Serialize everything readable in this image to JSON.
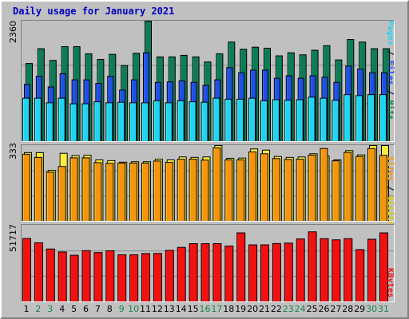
{
  "title": "Daily usage for January 2021",
  "colors": {
    "hits": "#0f7b54",
    "files": "#1f4fe3",
    "pages": "#22d3f4",
    "visits": "#f9ef3a",
    "sites": "#f4940f",
    "kbytes": "#f21111",
    "weekend_tick": "#18874b",
    "weekday_tick": "#000000"
  },
  "panels": {
    "top": {
      "ymax": "2360",
      "legend": {
        "pages": "Pages",
        "files": "Files",
        "hits": "Hits",
        "sep": " / "
      }
    },
    "middle": {
      "ymax": "333",
      "legend": {
        "sites": "Sites",
        "visits": "Visits",
        "sep": " / "
      }
    },
    "bottom": {
      "ymax": "51717",
      "legend": {
        "kbytes": "KBytes"
      }
    }
  },
  "chart_data": [
    {
      "type": "bar",
      "title": "Daily usage for January 2021",
      "ylim": [
        0,
        2360
      ],
      "categories": [
        "1",
        "2",
        "3",
        "4",
        "5",
        "6",
        "7",
        "8",
        "9",
        "10",
        "11",
        "12",
        "13",
        "14",
        "15",
        "16",
        "17",
        "18",
        "19",
        "20",
        "21",
        "22",
        "23",
        "24",
        "25",
        "26",
        "27",
        "28",
        "29",
        "30",
        "31"
      ],
      "weekend_days": [
        "2",
        "3",
        "9",
        "10",
        "16",
        "17",
        "23",
        "24",
        "30",
        "31"
      ],
      "series": [
        {
          "name": "Hits",
          "values": [
            1530,
            1820,
            1590,
            1860,
            1860,
            1720,
            1610,
            1710,
            1490,
            1730,
            2360,
            1660,
            1660,
            1690,
            1660,
            1560,
            1720,
            1950,
            1810,
            1850,
            1830,
            1680,
            1740,
            1700,
            1790,
            1880,
            1600,
            2000,
            1950,
            1820,
            1820
          ]
        },
        {
          "name": "Files",
          "values": [
            1120,
            1280,
            1070,
            1330,
            1210,
            1210,
            1140,
            1280,
            1010,
            1210,
            1740,
            1160,
            1170,
            1190,
            1160,
            1100,
            1210,
            1450,
            1350,
            1400,
            1400,
            1240,
            1290,
            1240,
            1290,
            1260,
            1160,
            1480,
            1420,
            1350,
            1350
          ]
        },
        {
          "name": "Pages",
          "values": [
            850,
            850,
            760,
            850,
            740,
            740,
            780,
            760,
            770,
            760,
            760,
            800,
            760,
            800,
            780,
            770,
            850,
            830,
            830,
            850,
            800,
            820,
            810,
            820,
            870,
            850,
            810,
            920,
            900,
            920,
            920
          ]
        }
      ]
    },
    {
      "type": "bar",
      "ylim": [
        0,
        333
      ],
      "categories": [
        "1",
        "2",
        "3",
        "4",
        "5",
        "6",
        "7",
        "8",
        "9",
        "10",
        "11",
        "12",
        "13",
        "14",
        "15",
        "16",
        "17",
        "18",
        "19",
        "20",
        "21",
        "22",
        "23",
        "24",
        "25",
        "26",
        "27",
        "28",
        "29",
        "30",
        "31"
      ],
      "series": [
        {
          "name": "Visits",
          "values": [
            302,
            302,
            224,
            299,
            289,
            290,
            270,
            267,
            260,
            262,
            262,
            273,
            270,
            283,
            281,
            283,
            333,
            277,
            278,
            318,
            313,
            285,
            281,
            283,
            297,
            287,
            270,
            311,
            292,
            333,
            333
          ]
        },
        {
          "name": "Sites",
          "values": [
            295,
            281,
            216,
            241,
            279,
            279,
            258,
            255,
            256,
            256,
            256,
            265,
            259,
            273,
            273,
            269,
            323,
            270,
            270,
            305,
            297,
            276,
            272,
            273,
            291,
            320,
            266,
            303,
            285,
            320,
            290
          ]
        }
      ]
    },
    {
      "type": "bar",
      "ylim": [
        0,
        51717
      ],
      "categories": [
        "1",
        "2",
        "3",
        "4",
        "5",
        "6",
        "7",
        "8",
        "9",
        "10",
        "11",
        "12",
        "13",
        "14",
        "15",
        "16",
        "17",
        "18",
        "19",
        "20",
        "21",
        "22",
        "23",
        "24",
        "25",
        "26",
        "27",
        "28",
        "29",
        "30",
        "31"
      ],
      "series": [
        {
          "name": "KBytes",
          "values": [
            42800,
            39900,
            35700,
            33700,
            31500,
            34600,
            33300,
            34500,
            31800,
            31800,
            32600,
            32700,
            34800,
            36800,
            39300,
            39300,
            39300,
            37700,
            46600,
            38500,
            38500,
            39400,
            39700,
            42500,
            47300,
            42700,
            41900,
            42700,
            35300,
            42300,
            46600
          ]
        }
      ]
    }
  ]
}
